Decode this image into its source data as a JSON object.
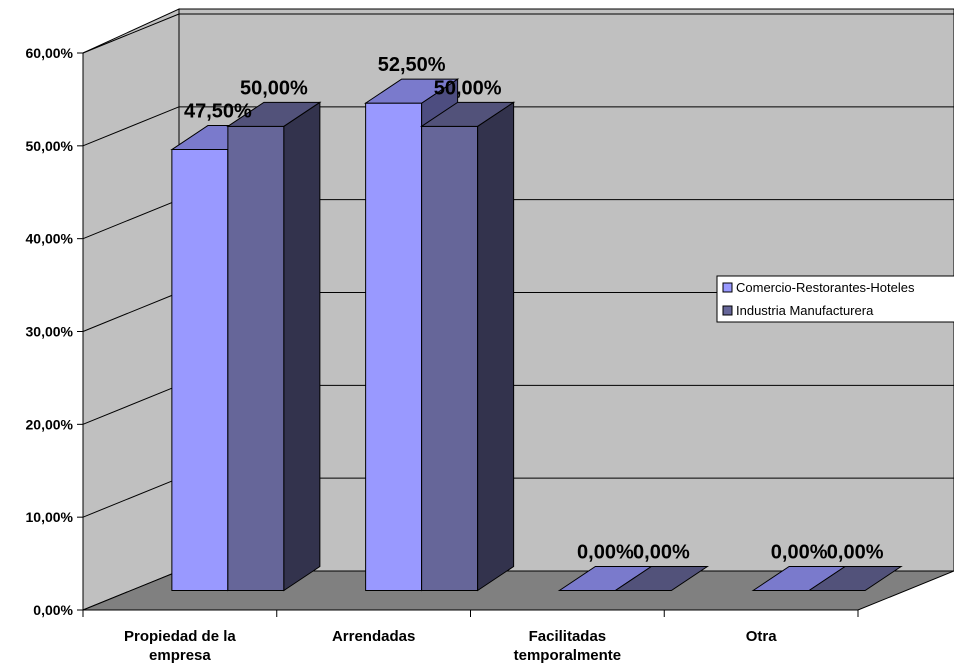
{
  "chart_data": {
    "type": "bar",
    "style": "3d-clustered-column",
    "categories": [
      [
        "Propiedad de la",
        "empresa"
      ],
      [
        "Arrendadas"
      ],
      [
        "Facilitadas",
        "temporalmente"
      ],
      [
        "Otra"
      ]
    ],
    "series": [
      {
        "name": "Comercio-Restorantes-Hoteles",
        "values": [
          47.5,
          52.5,
          0,
          0
        ],
        "labels": [
          "47,50%",
          "52,50%",
          "0,00%",
          "0,00%"
        ],
        "color": "#9999ff"
      },
      {
        "name": "Industria Manufacturera",
        "values": [
          50,
          50,
          0,
          0
        ],
        "labels": [
          "50,00%",
          "50,00%",
          "0,00%",
          "0,00%"
        ],
        "color": "#666699"
      }
    ],
    "y_ticks": [
      "0,00%",
      "10,00%",
      "20,00%",
      "30,00%",
      "40,00%",
      "50,00%",
      "60,00%"
    ],
    "ylim": [
      0,
      60
    ],
    "grid": true,
    "legend_position": "right",
    "colors": {
      "wall": "#c0c0c0",
      "floor": "#808080"
    }
  }
}
